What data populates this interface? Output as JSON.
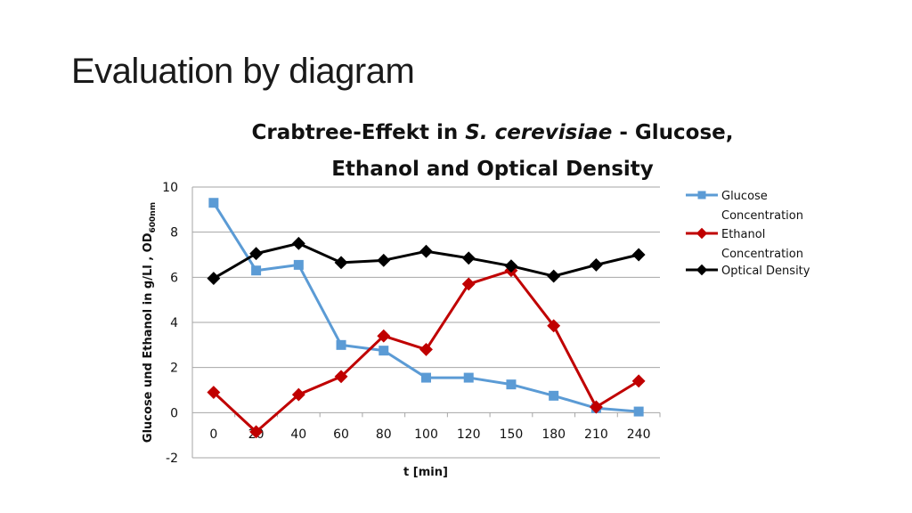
{
  "slide": {
    "title": "Evaluation by diagram"
  },
  "chart_data": {
    "type": "line",
    "title_line1_prefix": "Crabtree-Effekt in ",
    "title_line1_italic": "S. cerevisiae",
    "title_line1_suffix": " - Glucose,",
    "title_line2": "Ethanol and Optical Density",
    "xlabel": "t [min]",
    "ylabel_main": "Glucose und Ethanol in g/Ll , OD",
    "ylabel_sub": "600nm",
    "categories": [
      "0",
      "20",
      "40",
      "60",
      "80",
      "100",
      "120",
      "150",
      "180",
      "210",
      "240"
    ],
    "ylim": [
      -2,
      10
    ],
    "yticks": [
      -2,
      0,
      2,
      4,
      6,
      8,
      10
    ],
    "grid": true,
    "legend_position": "right",
    "series": [
      {
        "name": "Glucose Concentration",
        "legend_lines": [
          "Glucose",
          "Concentration"
        ],
        "color": "#5b9bd5",
        "marker": "square",
        "values": [
          9.3,
          6.3,
          6.55,
          3.0,
          2.75,
          1.55,
          1.55,
          1.25,
          0.75,
          0.2,
          0.05
        ]
      },
      {
        "name": "Ethanol Concentration",
        "legend_lines": [
          "Ethanol",
          "Concentration"
        ],
        "color": "#c00000",
        "marker": "diamond",
        "values": [
          0.9,
          -0.85,
          0.8,
          1.6,
          3.4,
          2.8,
          5.7,
          6.3,
          3.85,
          0.25,
          1.4
        ]
      },
      {
        "name": "Optical Density",
        "legend_lines": [
          "Optical Density"
        ],
        "color": "#000000",
        "marker": "diamond",
        "values": [
          5.95,
          7.05,
          7.5,
          6.65,
          6.75,
          7.15,
          6.85,
          6.5,
          6.05,
          6.55,
          7.0
        ]
      }
    ]
  }
}
